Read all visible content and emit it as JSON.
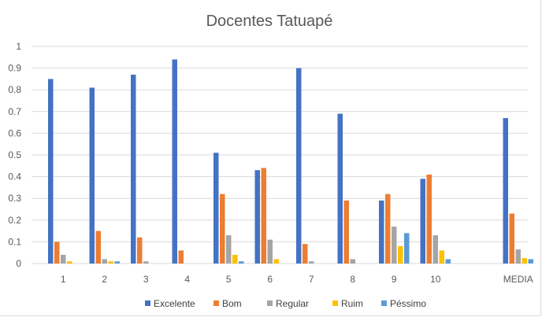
{
  "chart_data": {
    "type": "bar",
    "title": "Docentes Tatuapé",
    "categories": [
      "1",
      "2",
      "3",
      "4",
      "5",
      "6",
      "7",
      "8",
      "9",
      "10",
      "",
      "MEDIA"
    ],
    "ylim": [
      0,
      1
    ],
    "yticks": [
      "0",
      "0.1",
      "0.2",
      "0.3",
      "0.4",
      "0.5",
      "0.6",
      "0.7",
      "0.8",
      "0.9",
      "1"
    ],
    "grid": true,
    "legend": "bottom",
    "series": [
      {
        "name": "Excelente",
        "color": "#4472C4",
        "values": [
          0.85,
          0.81,
          0.87,
          0.94,
          0.51,
          0.43,
          0.9,
          0.69,
          0.29,
          0.39,
          null,
          0.67
        ]
      },
      {
        "name": "Bom",
        "color": "#ED7D31",
        "values": [
          0.1,
          0.15,
          0.12,
          0.06,
          0.32,
          0.44,
          0.09,
          0.29,
          0.32,
          0.41,
          null,
          0.23
        ]
      },
      {
        "name": "Regular",
        "color": "#A5A5A5",
        "values": [
          0.04,
          0.02,
          0.01,
          0.0,
          0.13,
          0.11,
          0.01,
          0.02,
          0.17,
          0.13,
          null,
          0.065
        ]
      },
      {
        "name": "Ruim",
        "color": "#FFC000",
        "values": [
          0.01,
          0.01,
          0.0,
          0.0,
          0.04,
          0.02,
          0.0,
          0.0,
          0.08,
          0.06,
          null,
          0.025
        ]
      },
      {
        "name": "Péssimo",
        "color": "#5B9BD5",
        "values": [
          0.0,
          0.01,
          0.0,
          0.0,
          0.01,
          0.0,
          0.0,
          0.0,
          0.14,
          0.02,
          null,
          0.02
        ]
      }
    ]
  }
}
